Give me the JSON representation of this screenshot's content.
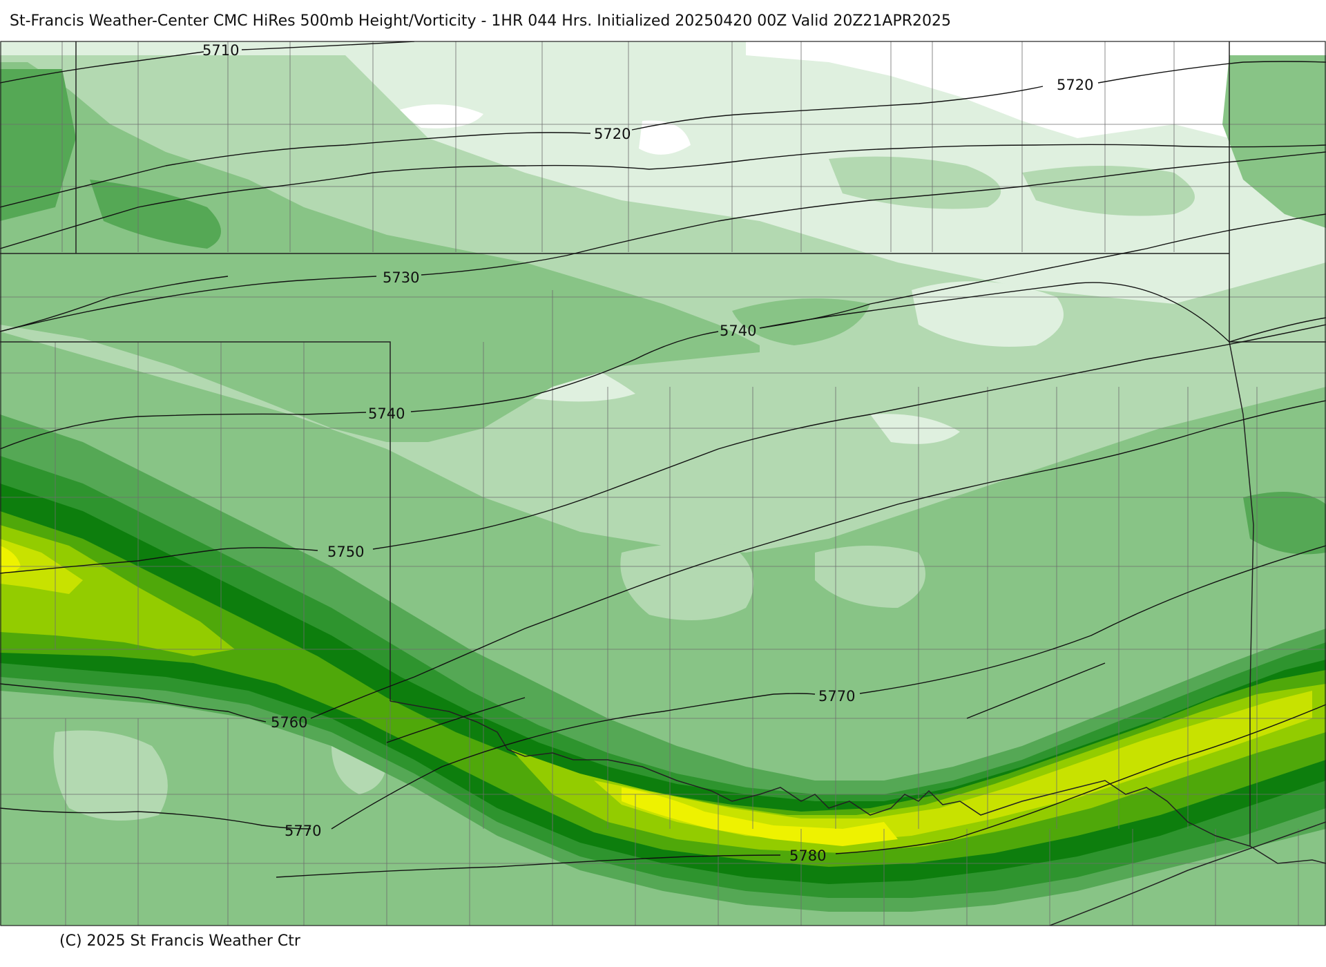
{
  "header": {
    "title": "St-Francis Weather-Center CMC HiRes 500mb Height/Vorticity - 1HR  044 Hrs.  Initialized 20250420 00Z Valid 20Z21APR2025"
  },
  "footer": {
    "copyright": "(C) 2025 St Francis Weather Ctr"
  },
  "palette": {
    "background": "#ffffff",
    "vort_0": "#dff0df",
    "vort_1": "#b3d9b1",
    "vort_2": "#88c486",
    "vort_3": "#55a855",
    "vort_4": "#2e942e",
    "vort_5": "#0d7e0d",
    "vort_6": "#4fa80a",
    "vort_7": "#93cc00",
    "vort_8": "#c8e200",
    "vort_9": "#eef200",
    "contour": "#111111",
    "border": "#222222",
    "county": "#6d6d6d"
  },
  "contours": {
    "c5710": "5710",
    "c5720a": "5720",
    "c5720b": "5720",
    "c5730": "5730",
    "c5740a": "5740",
    "c5740b": "5740",
    "c5750": "5750",
    "c5760": "5760",
    "c5770a": "5770",
    "c5770b": "5770",
    "c5780": "5780"
  }
}
